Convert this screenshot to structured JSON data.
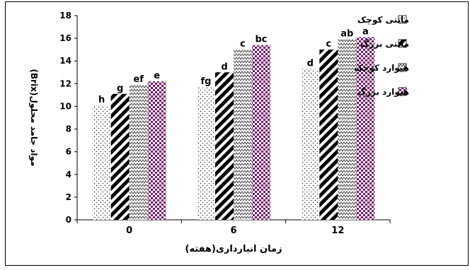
{
  "chart_data": {
    "type": "bar",
    "title": "",
    "xlabel": "زمان انبارداری(هفته)",
    "ylabel": "مواد جامد محلول(Brix)",
    "ylim": [
      0,
      18
    ],
    "yticks": [
      0,
      2,
      4,
      6,
      8,
      10,
      12,
      14,
      16,
      18
    ],
    "grid": false,
    "legend_position": "right",
    "categories": [
      "0",
      "6",
      "12"
    ],
    "series": [
      {
        "name": "مانتی کوچک",
        "pattern": "dots",
        "color": "#000000",
        "values": [
          10.1,
          11.7,
          13.3
        ],
        "labels": [
          "h",
          "fg",
          "d"
        ]
      },
      {
        "name": "مانتی بزرگ",
        "pattern": "diagonal-stripes",
        "color": "#000000",
        "values": [
          11.1,
          13.0,
          15.0
        ],
        "labels": [
          "g",
          "d",
          "c"
        ]
      },
      {
        "name": "هیوارد کوچک",
        "pattern": "zigzag",
        "color": "#000000",
        "values": [
          11.9,
          15.0,
          15.9
        ],
        "labels": [
          "ef",
          "c",
          "ab"
        ]
      },
      {
        "name": "هیوارد بزرگ",
        "pattern": "checker",
        "color": "#7a1a6e",
        "values": [
          12.2,
          15.4,
          16.1
        ],
        "labels": [
          "e",
          "bc",
          "a"
        ]
      }
    ]
  }
}
